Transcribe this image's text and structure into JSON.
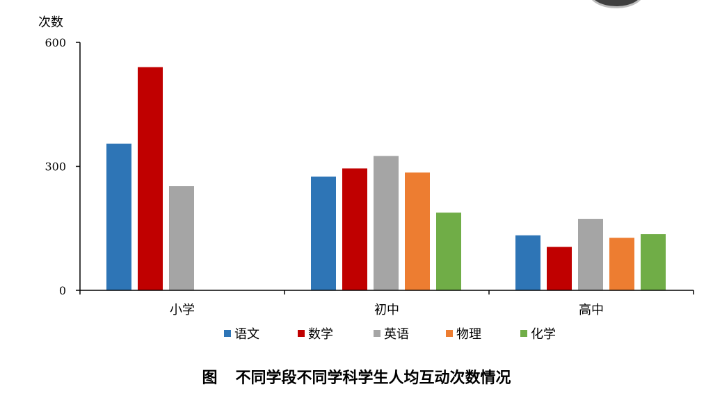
{
  "chart_data": {
    "type": "bar",
    "title": "不同学段不同学科学生人均互动次数情况",
    "figure_label": "图",
    "ylabel": "次数",
    "xlabel": "",
    "categories": [
      "小学",
      "初中",
      "高中"
    ],
    "ylim": [
      0,
      600
    ],
    "yticks": [
      0,
      300,
      600
    ],
    "grid": false,
    "legend_position": "bottom",
    "series": [
      {
        "name": "语文",
        "color": "#2E75B6",
        "values": [
          355,
          275,
          133
        ]
      },
      {
        "name": "数学",
        "color": "#C00000",
        "values": [
          540,
          295,
          105
        ]
      },
      {
        "name": "英语",
        "color": "#A5A5A5",
        "values": [
          252,
          325,
          173
        ]
      },
      {
        "name": "物理",
        "color": "#ED7D31",
        "values": [
          null,
          285,
          127
        ]
      },
      {
        "name": "化学",
        "color": "#70AD47",
        "values": [
          null,
          188,
          136
        ]
      }
    ]
  }
}
